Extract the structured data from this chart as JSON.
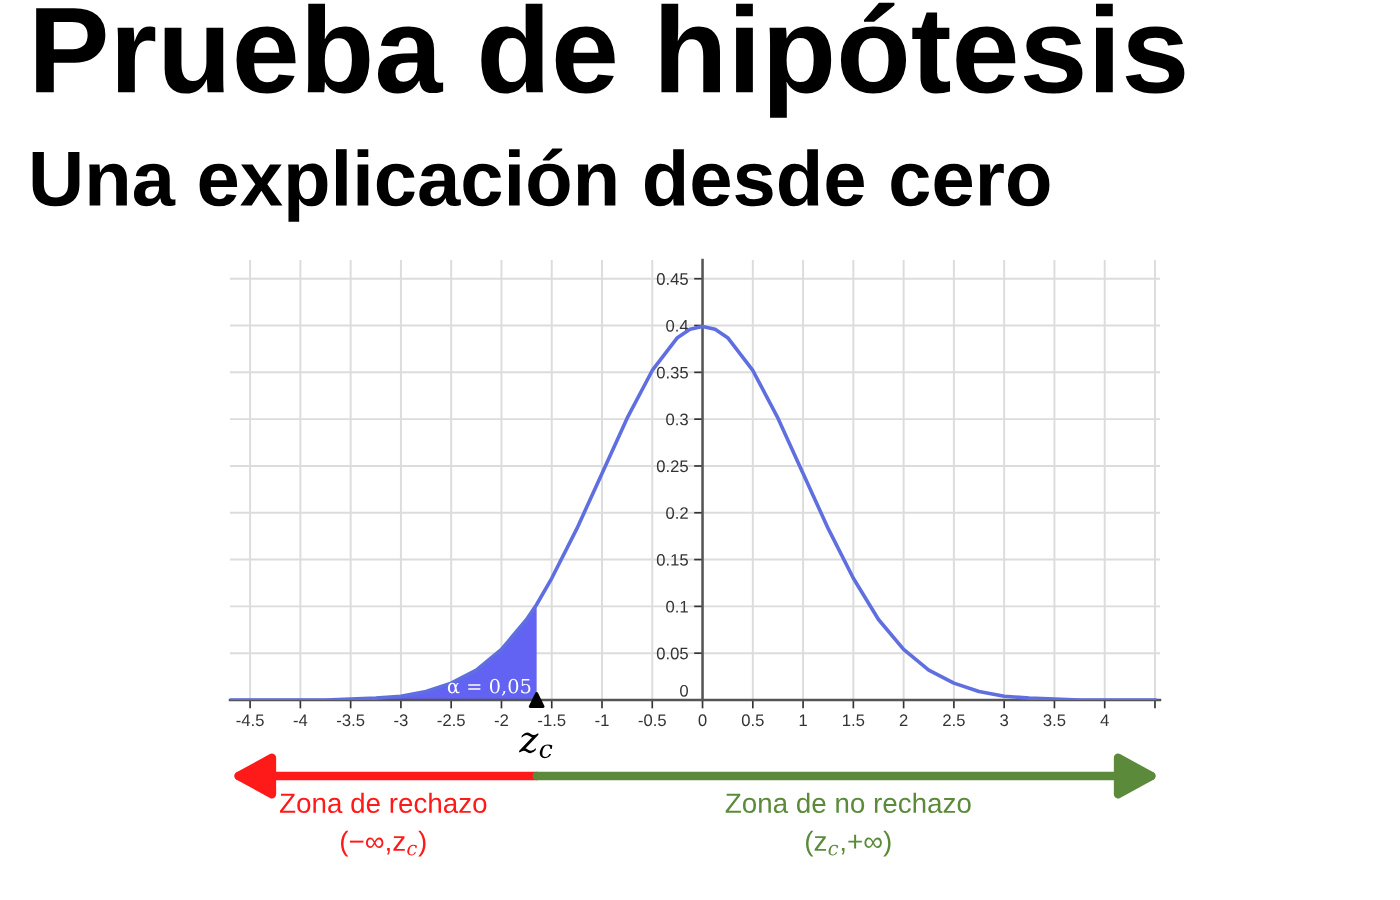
{
  "chart_data": {
    "type": "line",
    "title": "Prueba de hipótesis",
    "subtitle": "Una explicación desde cero",
    "series": [
      {
        "type": "area",
        "color": "#6262f3",
        "x": [
          -4.7,
          -4.5,
          -4.25,
          -4,
          -3.75,
          -3.5,
          -3.25,
          -3,
          -2.75,
          -2.5,
          -2.25,
          -2,
          -1.75,
          -1.65
        ],
        "values": [
          0,
          0,
          0,
          0,
          0,
          0.001,
          0.002,
          0.004,
          0.009,
          0.018,
          0.032,
          0.054,
          0.086,
          0.102
        ]
      },
      {
        "color": "#5f6fe0",
        "x": [
          -4.7,
          -4.5,
          -4.25,
          -4,
          -3.75,
          -3.5,
          -3.25,
          -3,
          -2.75,
          -2.5,
          -2.25,
          -2,
          -1.75,
          -1.65,
          -1.5,
          -1.25,
          -1,
          -0.75,
          -0.5,
          -0.25,
          -0.125,
          0,
          0.125,
          0.25,
          0.5,
          0.75,
          1,
          1.25,
          1.5,
          1.75,
          2,
          2.25,
          2.5,
          2.75,
          3,
          3.25,
          3.5,
          3.75,
          4,
          4.25,
          4.5
        ],
        "values": [
          0,
          0,
          0,
          0,
          0,
          0.001,
          0.002,
          0.004,
          0.009,
          0.018,
          0.032,
          0.054,
          0.086,
          0.102,
          0.13,
          0.183,
          0.242,
          0.301,
          0.352,
          0.387,
          0.396,
          0.399,
          0.396,
          0.387,
          0.352,
          0.301,
          0.242,
          0.183,
          0.13,
          0.086,
          0.054,
          0.032,
          0.018,
          0.009,
          0.004,
          0.002,
          0.001,
          0,
          0,
          0,
          0
        ]
      },
      {
        "type": "scatter",
        "name": "z$_{c}$",
        "color": "#000000",
        "marker": "triangle",
        "x": [
          -1.65
        ],
        "values": [
          0
        ]
      }
    ],
    "xlim": [
      -4.7,
      4.55
    ],
    "ylim": [
      0,
      0.47
    ],
    "xticks": [
      -4.5,
      -4,
      -3.5,
      -3,
      -2.5,
      -2,
      -1.5,
      -1,
      -0.5,
      0,
      0.5,
      1,
      1.5,
      2,
      2.5,
      3,
      3.5,
      4,
      {
        "value": 4.5,
        "label": null
      }
    ],
    "yticks": [
      0,
      0.05,
      0.1,
      0.15,
      0.2,
      0.25,
      0.3,
      0.35,
      0.4,
      0.45
    ],
    "grid": true,
    "annotations": [
      {
        "text": "α = 0,05",
        "x": -2.12,
        "y": 0.003
      },
      "Zona de rechazo\n(−∞,z$_{c}$)",
      "Zona de no rechazo\n(z$_{c}$,+∞)"
    ]
  }
}
